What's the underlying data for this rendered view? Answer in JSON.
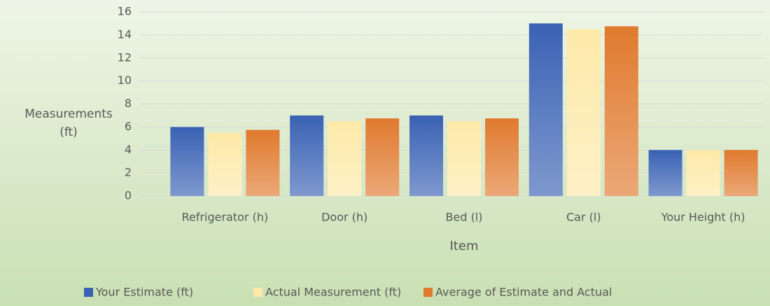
{
  "chart_data": {
    "type": "bar",
    "categories": [
      "Refrigerator (h)",
      "Door (h)",
      "Bed (l)",
      "Car (l)",
      "Your Height (h)"
    ],
    "series": [
      {
        "name": "Your Estimate (ft)",
        "color": "#3a62b4",
        "values": [
          6,
          7,
          7,
          15,
          4
        ]
      },
      {
        "name": "Actual Measurement (ft)",
        "color": "#fde9a8",
        "values": [
          5.5,
          6.5,
          6.5,
          14.5,
          4
        ]
      },
      {
        "name": "Average of Estimate and Actual",
        "color": "#e07a2e",
        "values": [
          5.75,
          6.75,
          6.75,
          14.75,
          4
        ]
      }
    ],
    "ylabel": "Measurements (ft)",
    "xlabel": "Item",
    "ylim": [
      0,
      16
    ],
    "yticks": [
      0,
      2,
      4,
      6,
      8,
      10,
      12,
      14,
      16
    ],
    "grid": true,
    "legend": "bottom"
  }
}
